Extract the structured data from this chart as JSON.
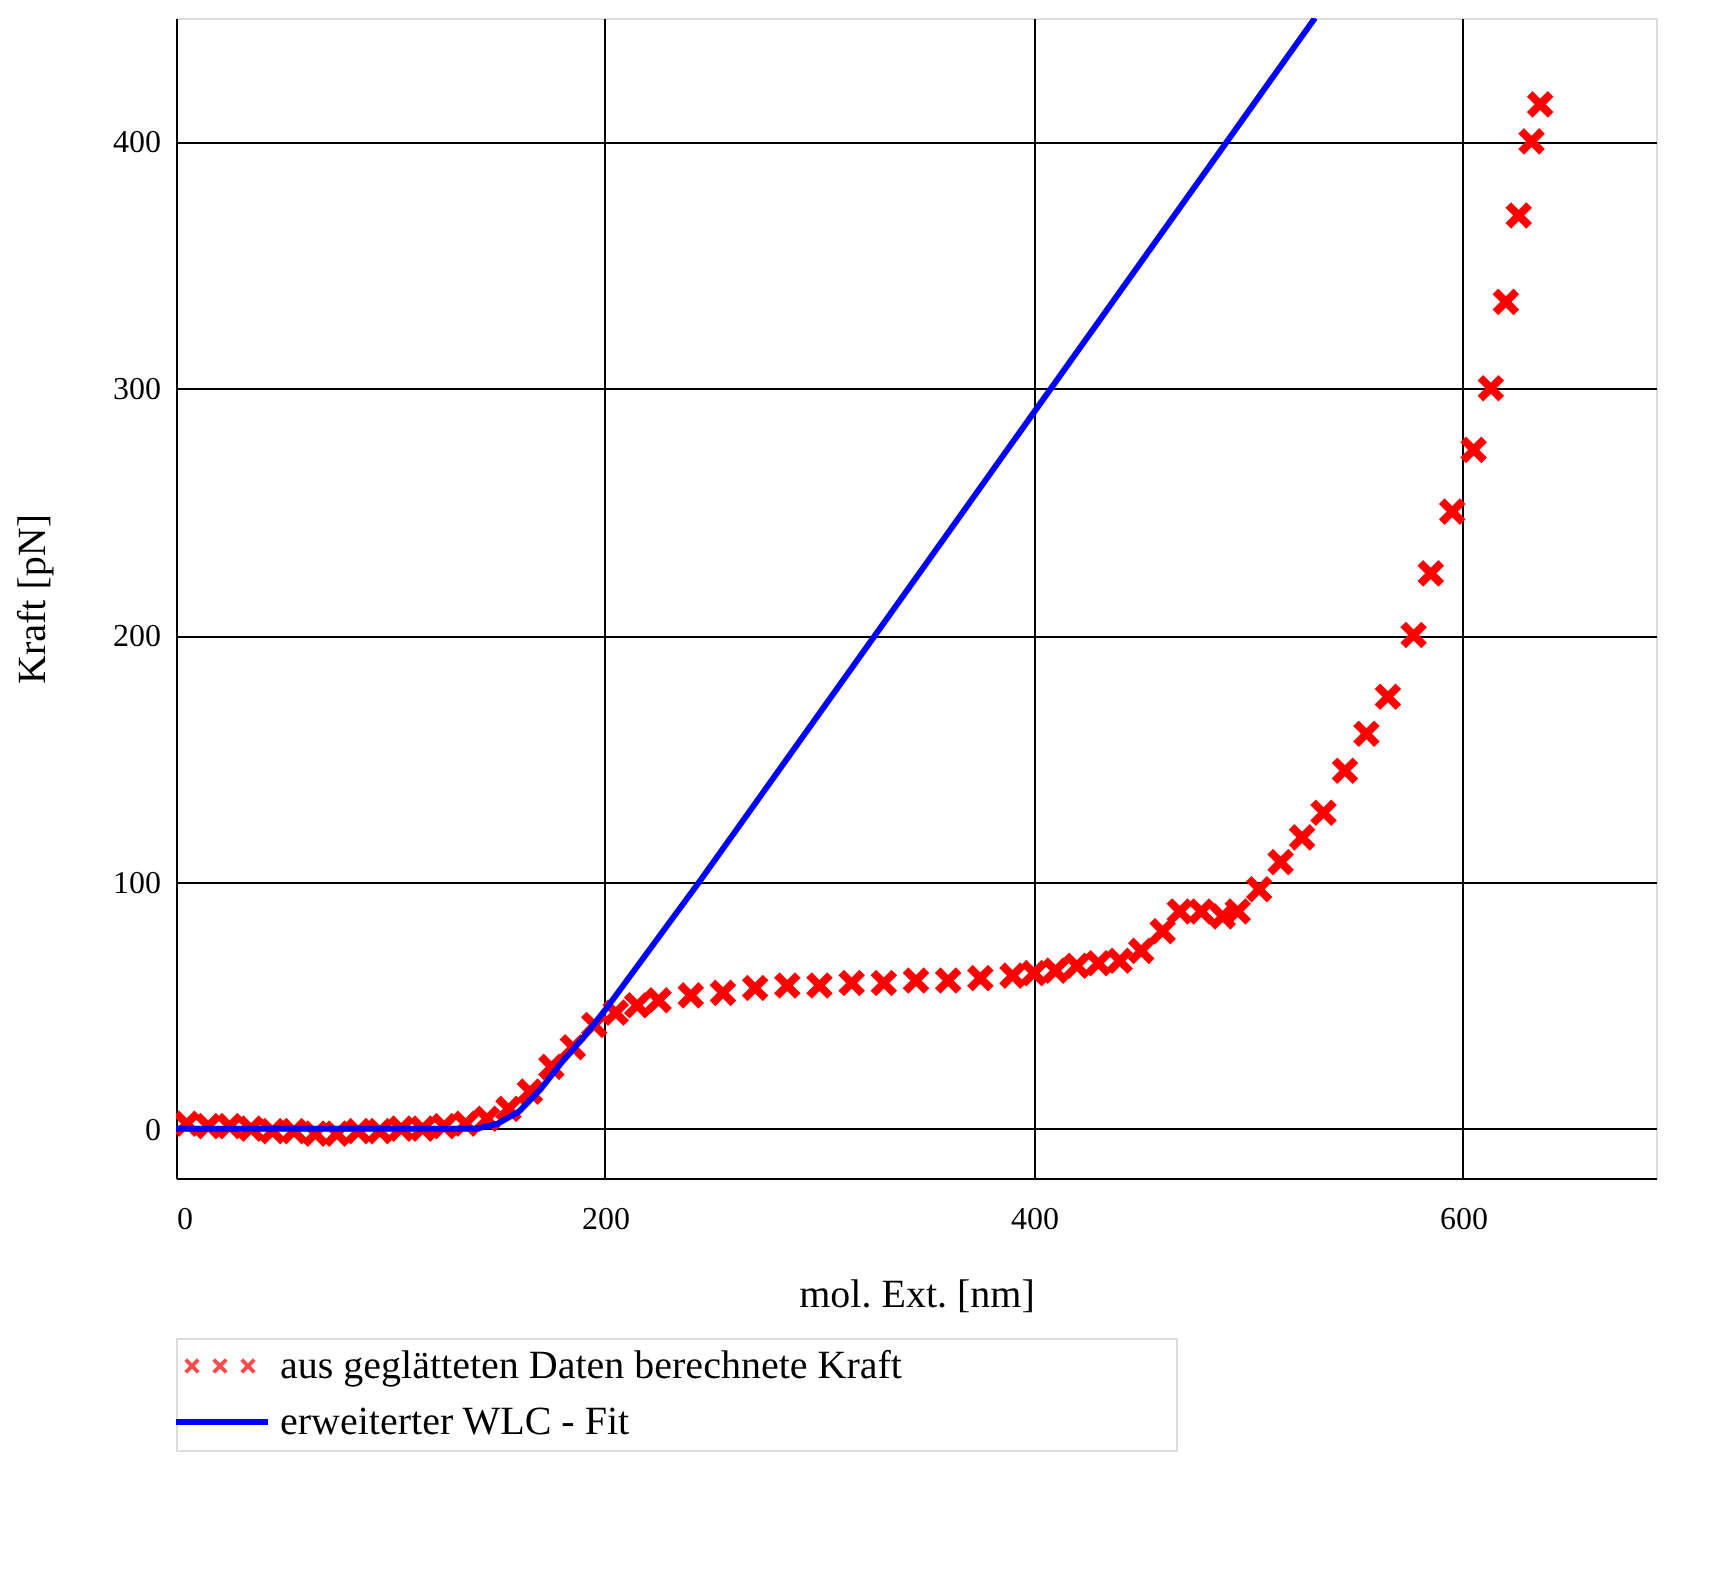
{
  "chart_data": {
    "type": "line",
    "xlabel": "mol. Ext. [nm]",
    "ylabel": "Kraft [pN]",
    "xlim": [
      0,
      690
    ],
    "ylim": [
      -20,
      450
    ],
    "xticks": [
      0,
      200,
      400,
      600
    ],
    "yticks": [
      0,
      100,
      200,
      300,
      400
    ],
    "grid": true,
    "legend": "bottom",
    "series": [
      {
        "name": "aus geglätteten Daten berechnete Kraft",
        "type": "scatter",
        "marker": "cross",
        "color": "#ff0000",
        "x": [
          5,
          15,
          25,
          35,
          45,
          55,
          65,
          75,
          85,
          95,
          105,
          115,
          125,
          135,
          145,
          155,
          165,
          175,
          185,
          195,
          205,
          215,
          225,
          240,
          255,
          270,
          285,
          300,
          315,
          330,
          345,
          360,
          375,
          390,
          400,
          410,
          420,
          430,
          440,
          450,
          460,
          468,
          478,
          488,
          495,
          505,
          515,
          525,
          535,
          545,
          555,
          565,
          577,
          585,
          595,
          605,
          613,
          620,
          626,
          632,
          636
        ],
        "values": [
          2,
          1,
          1,
          0,
          -1,
          -1,
          -2,
          -2,
          -1,
          -1,
          0,
          0,
          1,
          2,
          4,
          8,
          15,
          25,
          33,
          42,
          47,
          50,
          52,
          54,
          55,
          57,
          58,
          58,
          59,
          59,
          60,
          60,
          61,
          62,
          63,
          64,
          66,
          67,
          68,
          72,
          80,
          88,
          88,
          86,
          88,
          97,
          108,
          118,
          128,
          145,
          160,
          175,
          200,
          225,
          250,
          275,
          300,
          335,
          370,
          400,
          415
        ]
      },
      {
        "name": "erweiterter WLC - Fit",
        "color": "#0000ff",
        "line_style": "solid",
        "x": [
          0,
          140,
          150,
          160,
          170,
          180,
          190,
          200,
          244,
          490,
          531
        ],
        "values": [
          0,
          0,
          2,
          7,
          16,
          27,
          37,
          48,
          100,
          400,
          450
        ]
      }
    ]
  }
}
